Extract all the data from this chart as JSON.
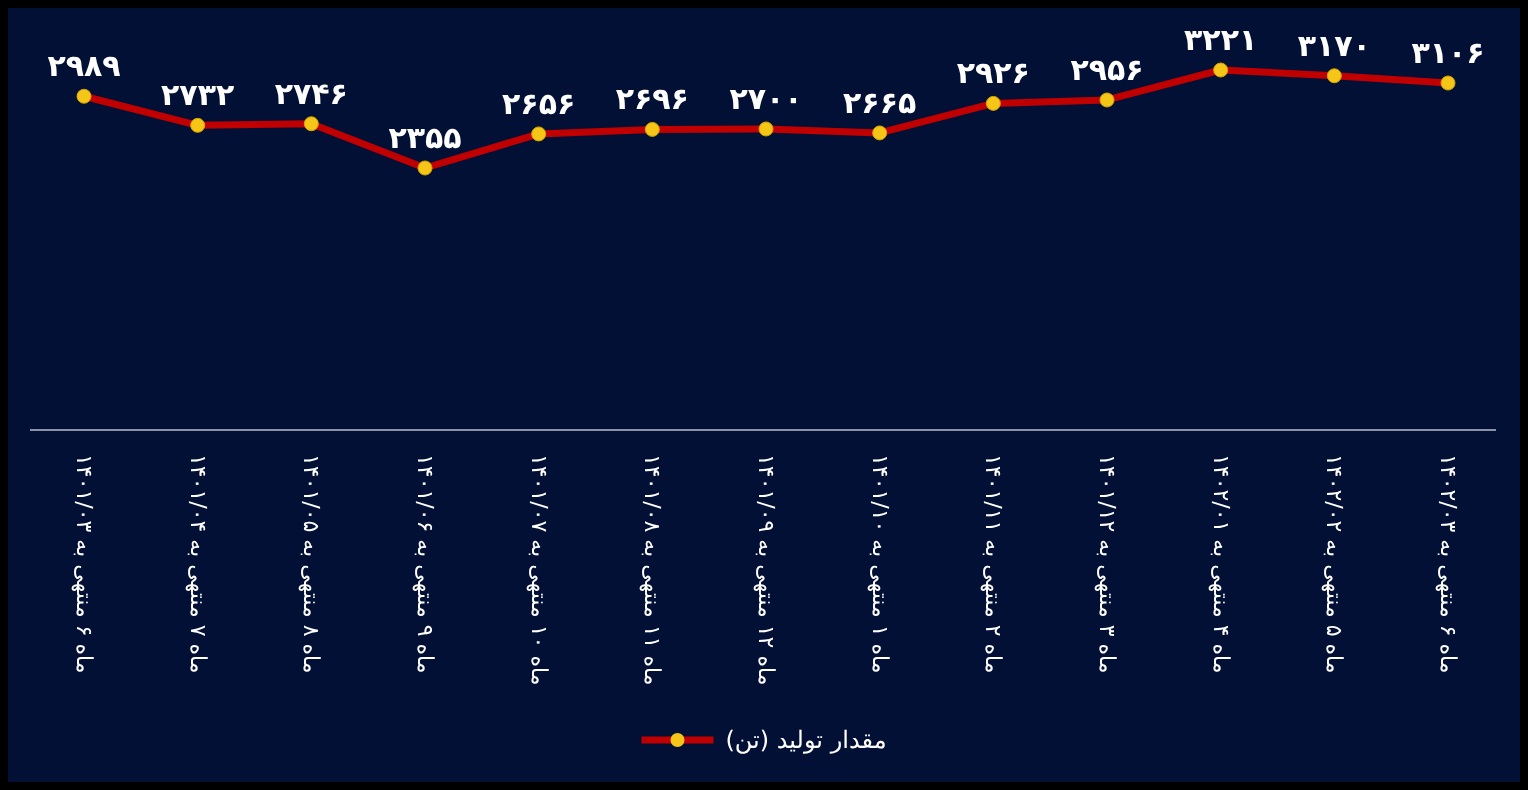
{
  "chart_data": {
    "type": "line",
    "categories": [
      "ماه ۶ منتهی به ۱۴۰۱/۰۳",
      "ماه ۷ منتهی به ۱۴۰۱/۰۴",
      "ماه ۸ منتهی به ۱۴۰۱/۰۵",
      "ماه ۹ منتهی به ۱۴۰۱/۰۶",
      "ماه ۱۰ منتهی به ۱۴۰۱/۰۷",
      "ماه ۱۱ منتهی به ۱۴۰۱/۰۸",
      "ماه ۱۲ منتهی به ۱۴۰۱/۰۹",
      "ماه ۱ منتهی به ۱۴۰۱/۱۰",
      "ماه ۲ منتهی به ۱۴۰۱/۱۱",
      "ماه ۳ منتهی به ۱۴۰۱/۱۲",
      "ماه ۴ منتهی به ۱۴۰۲/۰۱",
      "ماه ۵ منتهی به ۱۴۰۲/۰۲",
      "ماه ۶ منتهی به ۱۴۰۲/۰۳"
    ],
    "series": [
      {
        "name": "مقدار تولید (تن)",
        "color": "#c00000",
        "values": [
          2989,
          2732,
          2746,
          2355,
          2656,
          2696,
          2700,
          2665,
          2926,
          2956,
          3221,
          3170,
          3106
        ],
        "value_labels": [
          "۲۹۸۹",
          "۲۷۳۲",
          "۲۷۴۶",
          "۲۳۵۵",
          "۲۶۵۶",
          "۲۶۹۶",
          "۲۷۰۰",
          "۲۶۶۵",
          "۲۹۲۶",
          "۲۹۵۶",
          "۳۲۲۱",
          "۳۱۷۰",
          "۳۱۰۶"
        ]
      }
    ],
    "marker": "circle",
    "legend": "bottom",
    "tick_labels": "x"
  }
}
